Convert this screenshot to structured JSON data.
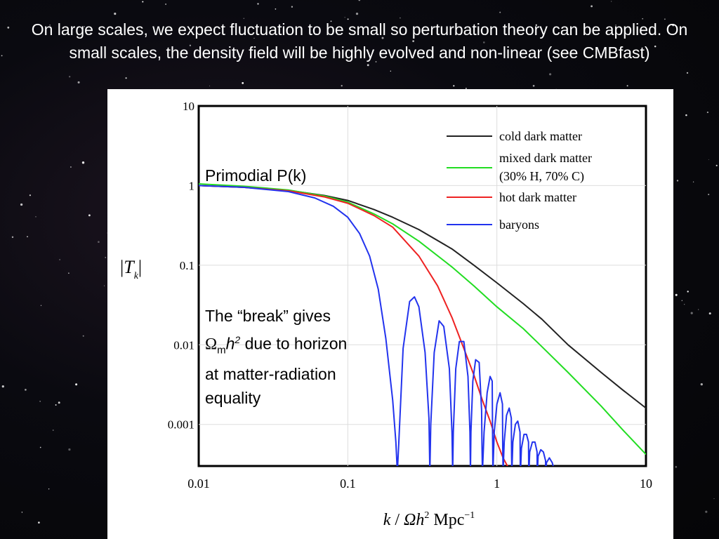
{
  "slide": {
    "heading": "On large scales, we expect fluctuation to be small so perturbation theory can be applied. On small scales, the density field will be highly evolved and non-linear (see CMBfast)",
    "annotation_primordial": "Primodial P(k)",
    "annotation_break": {
      "line1": "The “break” gives",
      "omega": "Ω",
      "sub_m": "m",
      "h": "h",
      "sup_2": "2",
      "after_h2": " due to horizon",
      "line3": "at matter-radiation",
      "line4": "equality"
    }
  },
  "chart_data": {
    "type": "line",
    "xscale": "log",
    "yscale": "log",
    "xlim": [
      0.01,
      10
    ],
    "ylim": [
      0.0003,
      10
    ],
    "xlabel": {
      "k": "k",
      "slash": " / ",
      "Omega": "Ω",
      "h": "h",
      "sup2": "2",
      "unit": " Mpc",
      "supm1": "−1"
    },
    "ylabel": {
      "T": "T",
      "sub": "k"
    },
    "x_ticks": [
      {
        "value": 0.01,
        "label": "0.01"
      },
      {
        "value": 0.1,
        "label": "0.1"
      },
      {
        "value": 1,
        "label": "1"
      },
      {
        "value": 10,
        "label": "10"
      }
    ],
    "y_ticks": [
      {
        "value": 10,
        "label": "10"
      },
      {
        "value": 1,
        "label": "1"
      },
      {
        "value": 0.1,
        "label": "0.1"
      },
      {
        "value": 0.01,
        "label": "0.01"
      },
      {
        "value": 0.001,
        "label": "0.001"
      }
    ],
    "legend_position": "top-right",
    "series": [
      {
        "name": "cold dark matter",
        "color": "#222222",
        "x": [
          0.01,
          0.02,
          0.04,
          0.07,
          0.1,
          0.15,
          0.2,
          0.3,
          0.5,
          0.7,
          1,
          1.5,
          2,
          3,
          5,
          7,
          10
        ],
        "y": [
          1.0,
          0.95,
          0.87,
          0.75,
          0.65,
          0.5,
          0.4,
          0.28,
          0.16,
          0.1,
          0.06,
          0.033,
          0.021,
          0.01,
          0.0045,
          0.0027,
          0.0016
        ]
      },
      {
        "name": "mixed dark matter",
        "name_line2": "(30% H, 70% C)",
        "color": "#22dd22",
        "x": [
          0.01,
          0.02,
          0.04,
          0.07,
          0.1,
          0.15,
          0.2,
          0.3,
          0.5,
          0.7,
          1,
          1.5,
          2,
          3,
          5,
          7,
          10
        ],
        "y": [
          1.05,
          0.98,
          0.88,
          0.74,
          0.62,
          0.44,
          0.33,
          0.2,
          0.095,
          0.055,
          0.03,
          0.016,
          0.0095,
          0.0045,
          0.0017,
          0.00085,
          0.00042
        ]
      },
      {
        "name": "hot dark matter",
        "color": "#ee2222",
        "x": [
          0.01,
          0.02,
          0.04,
          0.07,
          0.1,
          0.15,
          0.2,
          0.3,
          0.4,
          0.5,
          0.6,
          0.7,
          0.8,
          0.9,
          1.0,
          1.1,
          1.2
        ],
        "y": [
          1.0,
          0.95,
          0.86,
          0.72,
          0.6,
          0.42,
          0.3,
          0.13,
          0.055,
          0.022,
          0.009,
          0.0042,
          0.002,
          0.0011,
          0.0006,
          0.00038,
          0.00028
        ]
      },
      {
        "name": "baryons",
        "color": "#2233ee",
        "x": [
          0.01,
          0.02,
          0.04,
          0.06,
          0.08,
          0.1,
          0.12,
          0.14,
          0.16,
          0.18,
          0.2,
          0.21,
          0.215,
          0.22,
          0.235,
          0.26,
          0.28,
          0.3,
          0.33,
          0.35,
          0.355,
          0.36,
          0.38,
          0.41,
          0.44,
          0.48,
          0.5,
          0.505,
          0.51,
          0.53,
          0.56,
          0.6,
          0.64,
          0.66,
          0.665,
          0.67,
          0.69,
          0.72,
          0.76,
          0.79,
          0.795,
          0.8,
          0.82,
          0.86,
          0.9,
          0.93,
          0.935,
          0.94,
          0.96,
          1.0,
          1.05,
          1.09,
          1.095,
          1.1,
          1.12,
          1.16,
          1.21,
          1.25,
          1.255,
          1.26,
          1.28,
          1.33,
          1.38,
          1.43,
          1.435,
          1.44,
          1.46,
          1.52,
          1.58,
          1.63,
          1.635,
          1.64,
          1.66,
          1.73,
          1.8,
          1.86,
          1.865,
          1.87,
          1.89,
          1.97,
          2.05,
          2.12,
          2.125,
          2.13,
          2.15,
          2.25,
          2.35,
          2.45
        ],
        "y": [
          1.0,
          0.95,
          0.84,
          0.7,
          0.55,
          0.4,
          0.25,
          0.13,
          0.05,
          0.012,
          0.002,
          0.0006,
          0.00025,
          0.0006,
          0.009,
          0.035,
          0.04,
          0.03,
          0.008,
          0.0012,
          0.00025,
          0.001,
          0.008,
          0.02,
          0.017,
          0.005,
          0.0008,
          0.00025,
          0.0008,
          0.005,
          0.011,
          0.011,
          0.004,
          0.0008,
          0.00025,
          0.0008,
          0.0035,
          0.0065,
          0.006,
          0.0015,
          0.0005,
          0.00025,
          0.0008,
          0.0025,
          0.004,
          0.0035,
          0.0008,
          0.00025,
          0.0008,
          0.0018,
          0.0025,
          0.0018,
          0.0005,
          0.00025,
          0.0006,
          0.0013,
          0.0016,
          0.0012,
          0.0004,
          0.00025,
          0.0006,
          0.001,
          0.0011,
          0.0008,
          0.0003,
          0.00025,
          0.0005,
          0.00075,
          0.00075,
          0.0006,
          0.00028,
          0.00025,
          0.00045,
          0.0006,
          0.0006,
          0.00045,
          0.00026,
          0.00025,
          0.0004,
          0.00048,
          0.00045,
          0.00035,
          0.00026,
          0.00025,
          0.00033,
          0.00038,
          0.00033,
          0.00025
        ]
      }
    ]
  }
}
